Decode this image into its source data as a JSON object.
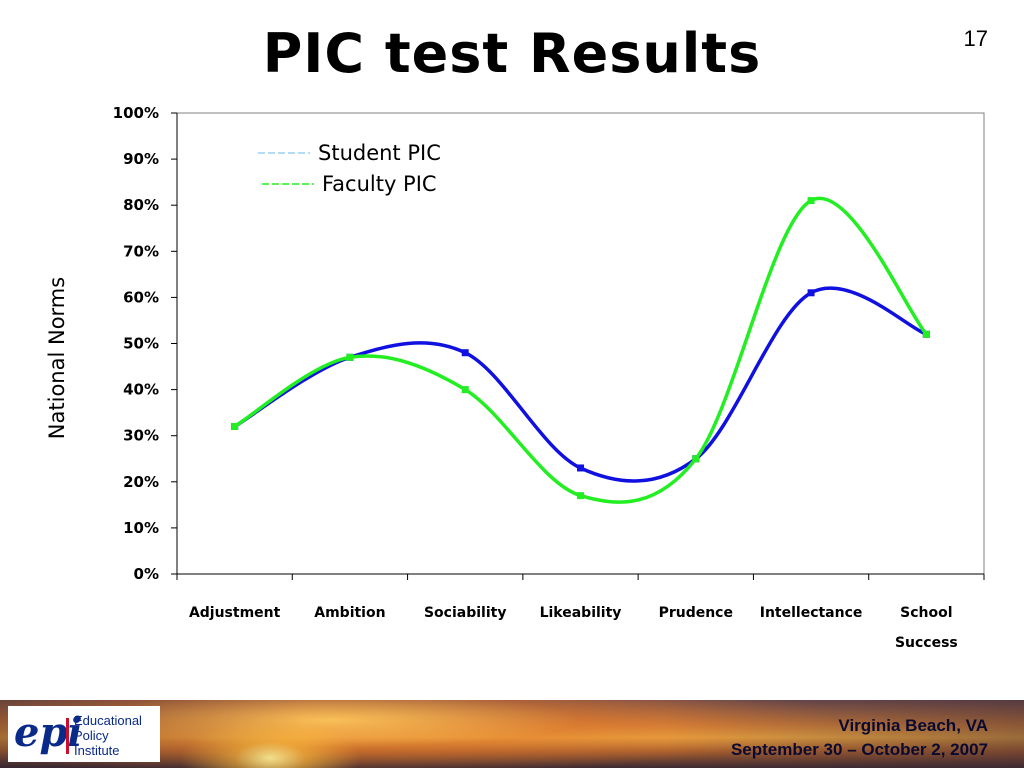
{
  "slide": {
    "title": "PIC test Results",
    "number": "17"
  },
  "chart_data": {
    "type": "line",
    "categories": [
      "Adjustment",
      "Ambition",
      "Sociability",
      "Likeability",
      "Prudence",
      "Intellectance",
      "School Success"
    ],
    "category_lines": [
      [
        "Adjustment"
      ],
      [
        "Ambition"
      ],
      [
        "Sociability"
      ],
      [
        "Likeability"
      ],
      [
        "Prudence"
      ],
      [
        "Intellectance"
      ],
      [
        "School",
        "Success"
      ]
    ],
    "ylabel": "National Norms",
    "ylim": [
      0,
      100
    ],
    "yticks": [
      0,
      10,
      20,
      30,
      40,
      50,
      60,
      70,
      80,
      90,
      100
    ],
    "ytick_labels": [
      "0%",
      "10%",
      "20%",
      "30%",
      "40%",
      "50%",
      "60%",
      "70%",
      "80%",
      "90%",
      "100%"
    ],
    "grid": false,
    "smooth": true,
    "legend_position": "top-center",
    "series": [
      {
        "name": "Student PIC",
        "color": "#1010e0",
        "legend_swatch_color": "#9ad0ee",
        "values": [
          32,
          47,
          48,
          23,
          25,
          61,
          52
        ]
      },
      {
        "name": "Faculty PIC",
        "color": "#22ee22",
        "legend_swatch_color": "#22ee22",
        "values": [
          32,
          47,
          40,
          17,
          25,
          81,
          52
        ]
      }
    ]
  },
  "footer": {
    "logo_mark": "epi",
    "logo_line1": "Educational",
    "logo_line2": "Policy",
    "logo_line3": "Institute",
    "location": "Virginia Beach, VA",
    "dates": "September 30 – October 2, 2007"
  }
}
